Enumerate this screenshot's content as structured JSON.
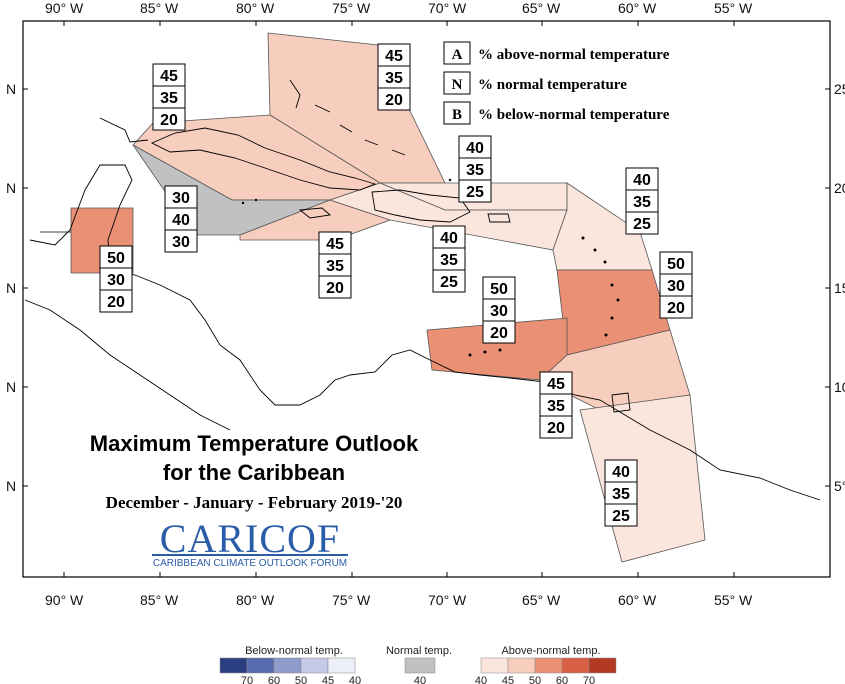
{
  "map": {
    "lon_labels": [
      "90° W",
      "85° W",
      "80° W",
      "75° W",
      "70° W",
      "65° W",
      "60° W",
      "55° W"
    ],
    "lat_labels_left": [
      "N",
      "N",
      "N",
      "N",
      "N"
    ],
    "lat_labels_right": [
      "25°",
      "20°",
      "15°",
      "10°",
      "5°"
    ]
  },
  "legend": {
    "rows": [
      {
        "letter": "A",
        "text": "% above-normal temperature"
      },
      {
        "letter": "N",
        "text": "% normal temperature"
      },
      {
        "letter": "B",
        "text": "% below-normal temperature"
      }
    ]
  },
  "title": {
    "line1": "Maximum Temperature Outlook",
    "line2": "for the Caribbean",
    "line3": "December - January - February 2019-'20"
  },
  "logo": {
    "name": "CARICOF",
    "subtitle": "CARIBBEAN CLIMATE OUTLOOK FORUM"
  },
  "regions": [
    {
      "name": "bahamas",
      "above": "45",
      "normal": "35",
      "below": "20",
      "color": "#f7cdbd"
    },
    {
      "name": "cuba",
      "above": "45",
      "normal": "35",
      "below": "20",
      "color": "#f7cdbd"
    },
    {
      "name": "cayman",
      "above": "30",
      "normal": "40",
      "below": "30",
      "color": "#c0c1c3"
    },
    {
      "name": "jamaica",
      "above": "45",
      "normal": "35",
      "below": "20",
      "color": "#f7cdbd"
    },
    {
      "name": "belize",
      "above": "50",
      "normal": "30",
      "below": "20",
      "color": "#ea9075"
    },
    {
      "name": "turks-caicos",
      "above": "40",
      "normal": "35",
      "below": "25",
      "color": "#fbe6de"
    },
    {
      "name": "hispaniola",
      "above": "40",
      "normal": "35",
      "below": "25",
      "color": "#fbe6de"
    },
    {
      "name": "leeward-islands",
      "above": "40",
      "normal": "35",
      "below": "25",
      "color": "#fbe6de"
    },
    {
      "name": "windward-islands",
      "above": "50",
      "normal": "30",
      "below": "20",
      "color": "#ea9075"
    },
    {
      "name": "abc-islands",
      "above": "50",
      "normal": "30",
      "below": "20",
      "color": "#ea9075"
    },
    {
      "name": "trinidad-tobago",
      "above": "45",
      "normal": "35",
      "below": "20",
      "color": "#f7cdbd"
    },
    {
      "name": "guianas",
      "above": "40",
      "normal": "35",
      "below": "25",
      "color": "#fbe6de"
    }
  ],
  "colorbar": {
    "below_title": "Below-normal temp.",
    "normal_title": "Normal temp.",
    "above_title": "Above-normal temp.",
    "below_ticks": [
      "70",
      "60",
      "50",
      "45",
      "40"
    ],
    "normal_ticks": [
      "40"
    ],
    "above_ticks": [
      "40",
      "45",
      "50",
      "60",
      "70"
    ],
    "below_colors": [
      "#2b3f80",
      "#5a6cb0",
      "#8f9bcc",
      "#c3c9e6",
      "#eceef8"
    ],
    "normal_color": "#c0c1c3",
    "above_colors": [
      "#fbe6de",
      "#f7cdbd",
      "#ea9075",
      "#d95f45",
      "#b33a22"
    ]
  }
}
